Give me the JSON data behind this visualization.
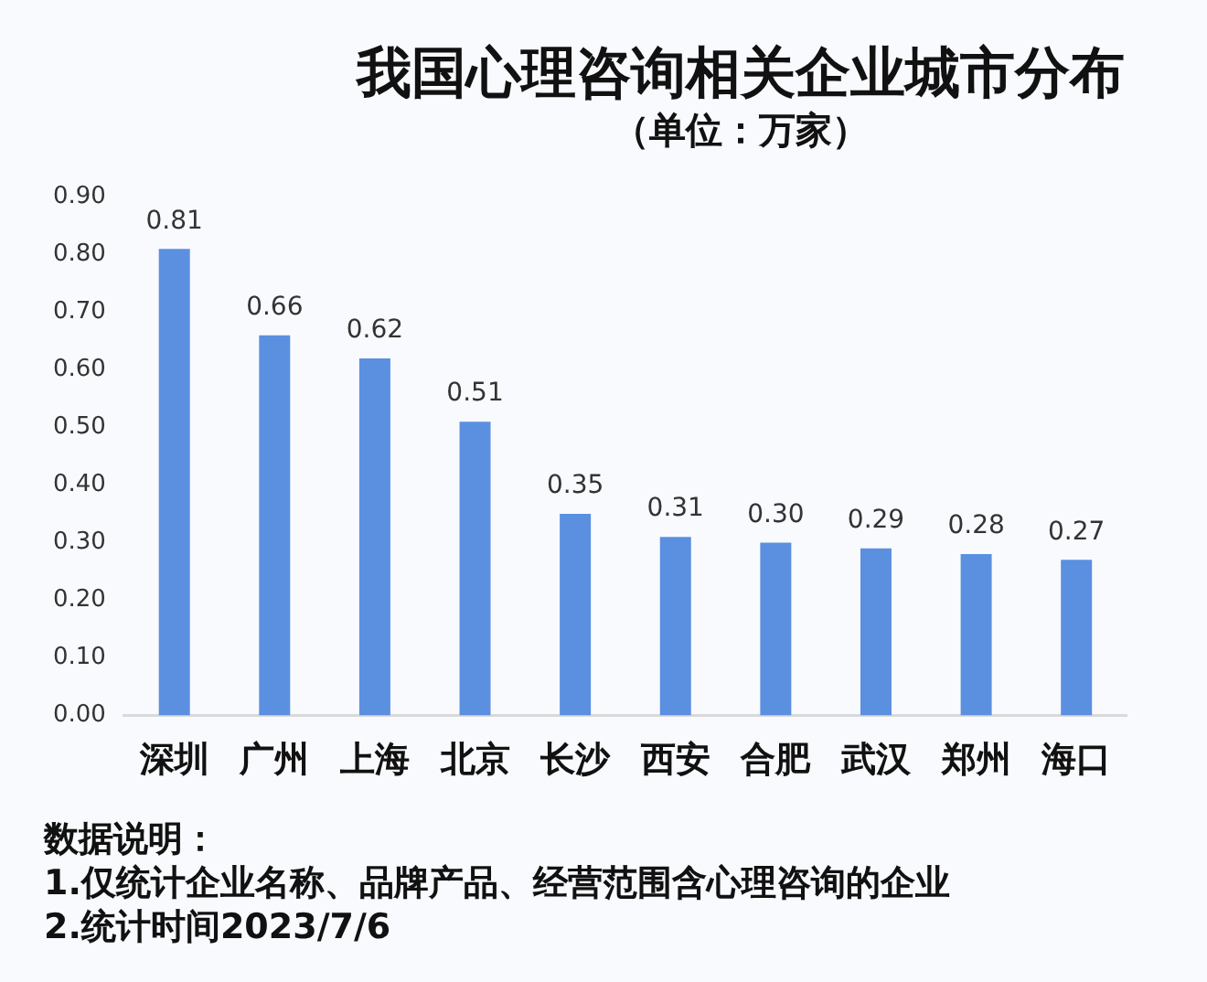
{
  "chart_data": {
    "type": "bar",
    "title": "我国心理咨询相关企业城市分布",
    "subtitle": "（单位：万家）",
    "categories": [
      "深圳",
      "广州",
      "上海",
      "北京",
      "长沙",
      "西安",
      "合肥",
      "武汉",
      "郑州",
      "海口"
    ],
    "values": [
      0.81,
      0.66,
      0.62,
      0.51,
      0.35,
      0.31,
      0.3,
      0.29,
      0.28,
      0.27
    ],
    "color": "#5b8fe0",
    "value_labels": [
      "0.81",
      "0.66",
      "0.62",
      "0.51",
      "0.35",
      "0.31",
      "0.30",
      "0.29",
      "0.28",
      "0.27"
    ],
    "ylim": [
      0,
      0.9
    ],
    "yticks": [
      {
        "value": 0,
        "label": "0.00"
      },
      {
        "value": 0.1,
        "label": "0.10"
      },
      {
        "value": 0.2,
        "label": "0.20"
      },
      {
        "value": 0.3,
        "label": "0.30"
      },
      {
        "value": 0.4,
        "label": "0.40"
      },
      {
        "value": 0.5,
        "label": "0.50"
      },
      {
        "value": 0.6,
        "label": "0.60"
      },
      {
        "value": 0.7,
        "label": "0.70"
      },
      {
        "value": 0.8,
        "label": "0.80"
      },
      {
        "value": 0.9,
        "label": "0.90"
      }
    ],
    "annotations": [
      "数据说明：",
      "1.仅统计企业名称、品牌产品、经营范围含心理咨询的企业",
      "2.统计时间2023/7/6"
    ]
  }
}
